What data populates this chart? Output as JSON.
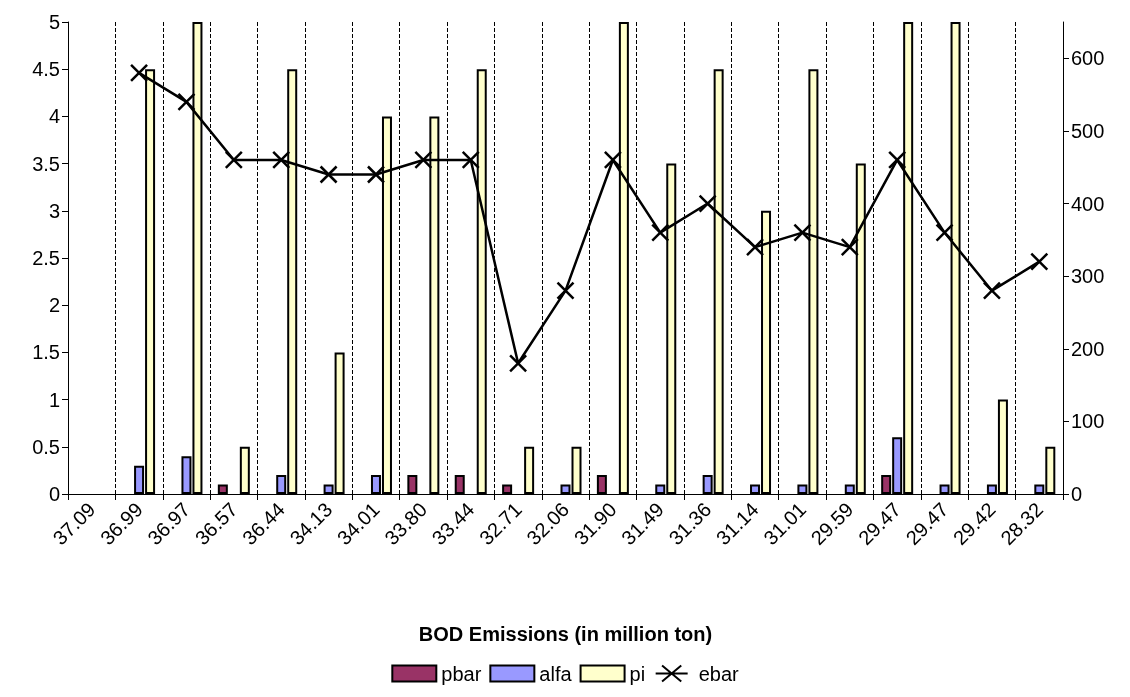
{
  "chart_data": {
    "type": "bar",
    "xlabel": "BOD Emissions (in million ton)",
    "categories": [
      "37.09",
      "36.99",
      "36.97",
      "36.57",
      "36.44",
      "34.13",
      "34.01",
      "33.80",
      "33.44",
      "32.71",
      "32.06",
      "31.90",
      "31.49",
      "31.36",
      "31.14",
      "31.01",
      "29.59",
      "29.47",
      "29.47",
      "29.42",
      "28.32"
    ],
    "series": [
      {
        "name": "pbar",
        "color": "#993366",
        "values": [
          null,
          null,
          null,
          0.1,
          null,
          null,
          null,
          0.2,
          0.2,
          0.1,
          null,
          0.2,
          null,
          null,
          null,
          null,
          null,
          0.2,
          null,
          null,
          null
        ]
      },
      {
        "name": "alfa",
        "color": "#9999ff",
        "values": [
          null,
          0.3,
          0.4,
          null,
          0.2,
          0.1,
          0.2,
          null,
          null,
          null,
          0.1,
          null,
          0.1,
          0.2,
          0.1,
          0.1,
          0.1,
          0.6,
          0.1,
          0.1,
          0.1
        ]
      },
      {
        "name": "pi",
        "color": "#ffffcc",
        "values": [
          null,
          4.5,
          5,
          0.5,
          4.5,
          1.5,
          4,
          4,
          4.5,
          0.5,
          0.5,
          5,
          3.5,
          4.5,
          3,
          4.5,
          3.5,
          5,
          5,
          1,
          0.5
        ]
      },
      {
        "name": "ebar",
        "type": "line",
        "axis": "y2",
        "color": "#000000",
        "marker": "cross",
        "values": [
          null,
          580,
          540,
          460,
          460,
          440,
          440,
          460,
          460,
          180,
          280,
          460,
          360,
          400,
          340,
          360,
          340,
          460,
          360,
          280,
          320
        ]
      }
    ],
    "ylim": [
      0,
      5
    ],
    "yticks": [
      0,
      0.5,
      1,
      1.5,
      2,
      2.5,
      3,
      3.5,
      4,
      4.5,
      5
    ],
    "y2lim": [
      0,
      650
    ],
    "y2ticks": [
      0,
      100,
      200,
      300,
      400,
      500,
      600
    ],
    "grid": "x",
    "legend": "bottom"
  }
}
